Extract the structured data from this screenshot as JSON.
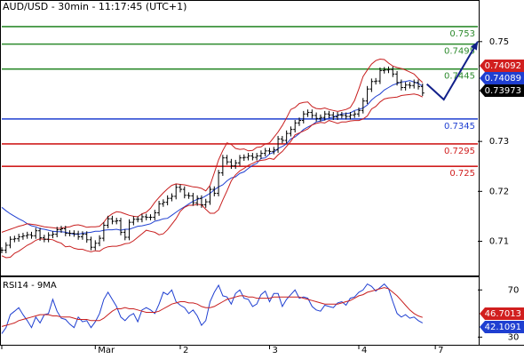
{
  "chart_data": {
    "type": "line",
    "title": "AUD/USD - 30min - 11:17:45 (UTC+1)",
    "price_panel": {
      "ylim": [
        0.7035,
        0.7578
      ],
      "y_ticks": [
        {
          "value": 0.75,
          "label": "0.75"
        },
        {
          "value": 0.73,
          "label": "0.73"
        },
        {
          "value": 0.72,
          "label": "0.72"
        },
        {
          "value": 0.71,
          "label": "0.71"
        }
      ],
      "levels": [
        {
          "value": 0.753,
          "label": "0.753",
          "color": "#2e8b2e"
        },
        {
          "value": 0.7495,
          "label": "0.7495",
          "color": "#2e8b2e"
        },
        {
          "value": 0.7445,
          "label": "0.7445",
          "color": "#2e8b2e"
        },
        {
          "value": 0.7345,
          "label": "0.7345",
          "color": "#1f3fd1"
        },
        {
          "value": 0.7295,
          "label": "0.7295",
          "color": "#d11f1f"
        },
        {
          "value": 0.725,
          "label": "0.725",
          "color": "#d11f1f"
        }
      ],
      "price_tags": [
        {
          "value": 0.74092,
          "label": "0.74092",
          "color": "#d11f1f"
        },
        {
          "value": 0.74089,
          "label": "0.74089",
          "color": "#1f3fd1"
        },
        {
          "value": 0.73973,
          "label": "0.73973",
          "color": "#000000"
        }
      ],
      "projection": [
        {
          "x": 100,
          "y": 0.7415
        },
        {
          "x": 104,
          "y": 0.7384
        },
        {
          "x": 112,
          "y": 0.75
        }
      ],
      "series": [
        {
          "role": "price",
          "color": "#000000",
          "y": [
            0.7082,
            0.7092,
            0.7104,
            0.7105,
            0.7109,
            0.7111,
            0.7113,
            0.7111,
            0.7121,
            0.7107,
            0.7104,
            0.7112,
            0.7114,
            0.7123,
            0.7125,
            0.7116,
            0.7116,
            0.7115,
            0.7109,
            0.7114,
            0.7103,
            0.7088,
            0.7096,
            0.7106,
            0.7132,
            0.7145,
            0.714,
            0.7141,
            0.7118,
            0.7108,
            0.7138,
            0.7144,
            0.7144,
            0.7149,
            0.7148,
            0.7148,
            0.7157,
            0.7175,
            0.7178,
            0.7186,
            0.719,
            0.7208,
            0.7204,
            0.7192,
            0.7191,
            0.7177,
            0.7186,
            0.7173,
            0.7179,
            0.7204,
            0.7196,
            0.7237,
            0.7267,
            0.7259,
            0.7251,
            0.7257,
            0.7267,
            0.7268,
            0.7271,
            0.7268,
            0.7271,
            0.7276,
            0.7281,
            0.728,
            0.7283,
            0.7305,
            0.7302,
            0.7316,
            0.7324,
            0.7337,
            0.7342,
            0.7355,
            0.7358,
            0.7352,
            0.7346,
            0.7348,
            0.7355,
            0.7353,
            0.7349,
            0.7353,
            0.7352,
            0.735,
            0.7353,
            0.7355,
            0.7362,
            0.7381,
            0.7405,
            0.742,
            0.7421,
            0.7442,
            0.7443,
            0.7444,
            0.7435,
            0.7418,
            0.7408,
            0.7413,
            0.7412,
            0.7418,
            0.741,
            0.7397
          ]
        },
        {
          "role": "moving-average",
          "color": "#1f3fd1",
          "y": [
            0.7168,
            0.7161,
            0.7155,
            0.715,
            0.7145,
            0.7141,
            0.7135,
            0.7131,
            0.7129,
            0.7125,
            0.7124,
            0.7122,
            0.712,
            0.7119,
            0.7119,
            0.7118,
            0.7116,
            0.7114,
            0.7114,
            0.7116,
            0.7117,
            0.7118,
            0.712,
            0.712,
            0.7122,
            0.7123,
            0.7123,
            0.7124,
            0.7122,
            0.7124,
            0.7124,
            0.7127,
            0.713,
            0.7131,
            0.7133,
            0.7135,
            0.714,
            0.7142,
            0.7145,
            0.7146,
            0.7152,
            0.7158,
            0.7164,
            0.7169,
            0.7175,
            0.718,
            0.7184,
            0.7186,
            0.7191,
            0.7196,
            0.7203,
            0.7209,
            0.7213,
            0.7221,
            0.7227,
            0.7229,
            0.7236,
            0.7239,
            0.7246,
            0.7252,
            0.7256,
            0.7266,
            0.7267,
            0.7275,
            0.7278,
            0.7286,
            0.729,
            0.7295,
            0.7305,
            0.7309,
            0.7316,
            0.7324,
            0.7329,
            0.7333,
            0.7339,
            0.7341,
            0.7343,
            0.7347,
            0.7349,
            0.7352,
            0.7355,
            0.7356,
            0.7357,
            0.7362,
            0.7364,
            0.7367,
            0.7373,
            0.7383,
            0.739,
            0.7395,
            0.7403,
            0.7408,
            0.7413,
            0.7416,
            0.7419,
            0.742,
            0.7422,
            0.7419,
            0.7416,
            0.7411
          ]
        },
        {
          "role": "band-upper",
          "color": "#c81e1e",
          "y": [
            0.7118,
            0.7121,
            0.7124,
            0.7127,
            0.713,
            0.7132,
            0.7135,
            0.7134,
            0.7133,
            0.7131,
            0.7129,
            0.7128,
            0.7127,
            0.7126,
            0.7126,
            0.7128,
            0.7129,
            0.7132,
            0.7133,
            0.7131,
            0.7128,
            0.7129,
            0.7129,
            0.713,
            0.7138,
            0.7149,
            0.7155,
            0.7159,
            0.7158,
            0.7155,
            0.7152,
            0.715,
            0.7149,
            0.7155,
            0.7158,
            0.7166,
            0.7178,
            0.7188,
            0.7197,
            0.7205,
            0.7212,
            0.7215,
            0.7214,
            0.7213,
            0.7211,
            0.7209,
            0.7208,
            0.7206,
            0.7201,
            0.7212,
            0.7237,
            0.7263,
            0.7282,
            0.7297,
            0.7294,
            0.7286,
            0.7284,
            0.7285,
            0.7281,
            0.7282,
            0.7288,
            0.7289,
            0.7295,
            0.7297,
            0.7308,
            0.7319,
            0.7332,
            0.7347,
            0.7364,
            0.7368,
            0.7376,
            0.7378,
            0.7379,
            0.737,
            0.7366,
            0.7365,
            0.7367,
            0.7364,
            0.7362,
            0.736,
            0.7362,
            0.7364,
            0.7368,
            0.7382,
            0.7405,
            0.743,
            0.7443,
            0.7455,
            0.7462,
            0.7465,
            0.7464,
            0.7457,
            0.7451,
            0.7448,
            0.7446,
            0.7443,
            0.7439,
            0.7435,
            0.7426,
            0.7418
          ]
        },
        {
          "role": "band-lower",
          "color": "#c81e1e",
          "y": [
            0.7071,
            0.7067,
            0.7068,
            0.7076,
            0.708,
            0.7086,
            0.7092,
            0.7096,
            0.7102,
            0.7105,
            0.7104,
            0.7104,
            0.7103,
            0.7099,
            0.7096,
            0.7089,
            0.709,
            0.7086,
            0.7084,
            0.7084,
            0.7081,
            0.7079,
            0.7081,
            0.708,
            0.7086,
            0.7089,
            0.709,
            0.709,
            0.7092,
            0.7095,
            0.7096,
            0.7101,
            0.7108,
            0.7115,
            0.7122,
            0.712,
            0.7118,
            0.7113,
            0.7115,
            0.7123,
            0.7134,
            0.7145,
            0.716,
            0.7168,
            0.7172,
            0.7172,
            0.7174,
            0.7173,
            0.7164,
            0.7156,
            0.7156,
            0.7163,
            0.7183,
            0.7201,
            0.7221,
            0.7233,
            0.7241,
            0.7246,
            0.7252,
            0.7256,
            0.726,
            0.7262,
            0.7263,
            0.7266,
            0.7264,
            0.7273,
            0.728,
            0.729,
            0.73,
            0.7313,
            0.7317,
            0.7321,
            0.7325,
            0.7333,
            0.7336,
            0.7338,
            0.7337,
            0.7342,
            0.7339,
            0.7336,
            0.7339,
            0.7339,
            0.7341,
            0.7342,
            0.7342,
            0.7345,
            0.7351,
            0.7365,
            0.737,
            0.7379,
            0.7385,
            0.7387,
            0.7388,
            0.7389,
            0.7392,
            0.7393,
            0.7394,
            0.7395,
            0.7393,
            0.7389
          ]
        }
      ]
    },
    "rsi_panel": {
      "title": "RSI14 - 9MA",
      "ylim": [
        25,
        80
      ],
      "y_ticks": [
        {
          "value": 70,
          "label": "70"
        },
        {
          "value": 30,
          "label": "30"
        }
      ],
      "value_tags": [
        {
          "value": 46.7013,
          "label": "46.7013",
          "color": "#d11f1f"
        },
        {
          "value": 42.1091,
          "label": "42.1091",
          "color": "#1f3fd1"
        }
      ],
      "series": [
        {
          "role": "rsi",
          "color": "#1f3fd1",
          "y": [
            33.0,
            38.0,
            49.0,
            52.0,
            55.0,
            49.0,
            44.0,
            38.0,
            47.0,
            42.0,
            49.0,
            50.0,
            62.0,
            52.0,
            46.0,
            45.0,
            41.0,
            38.0,
            47.0,
            43.0,
            44.0,
            38.0,
            43.0,
            50.0,
            62.0,
            68.0,
            62.0,
            56.0,
            47.0,
            44.0,
            48.0,
            50.0,
            43.0,
            53.0,
            55.0,
            53.0,
            50.0,
            58.0,
            68.0,
            66.0,
            70.0,
            60.0,
            57.0,
            55.0,
            50.0,
            53.0,
            48.0,
            40.0,
            44.0,
            60.0,
            68.0,
            74.0,
            65.0,
            64.0,
            58.0,
            67.0,
            70.0,
            63.0,
            62.0,
            56.0,
            58.0,
            66.0,
            69.0,
            60.0,
            67.0,
            67.0,
            56.0,
            62.0,
            66.0,
            70.0,
            63.0,
            64.0,
            63.0,
            56.0,
            53.0,
            52.0,
            57.0,
            56.0,
            55.0,
            59.0,
            60.0,
            57.0,
            63.0,
            64.0,
            68.0,
            70.0,
            75.0,
            73.0,
            69.0,
            72.0,
            75.0,
            71.0,
            60.0,
            50.0,
            47.0,
            49.0,
            46.0,
            47.0,
            44.0,
            42.0
          ]
        },
        {
          "role": "rsi-ma",
          "color": "#c81e1e",
          "y": [
            39.0,
            40.0,
            41.0,
            42.0,
            44.0,
            45.0,
            46.0,
            47.0,
            48.0,
            49.0,
            49.0,
            49.0,
            48.0,
            48.0,
            47.0,
            47.0,
            47.0,
            46.0,
            45.0,
            45.0,
            45.0,
            44.0,
            44.0,
            44.0,
            46.0,
            49.0,
            52.0,
            54.0,
            54.0,
            55.0,
            54.0,
            54.0,
            53.0,
            52.0,
            51.0,
            51.0,
            51.0,
            52.0,
            54.0,
            56.0,
            58.0,
            59.0,
            60.0,
            60.0,
            59.0,
            59.0,
            58.0,
            56.0,
            55.0,
            55.0,
            56.0,
            58.0,
            60.0,
            62.0,
            63.0,
            64.0,
            65.0,
            65.0,
            64.0,
            64.0,
            63.0,
            63.0,
            63.0,
            63.0,
            64.0,
            64.0,
            64.0,
            64.0,
            64.0,
            64.0,
            64.0,
            63.0,
            62.0,
            61.0,
            60.0,
            59.0,
            58.0,
            58.0,
            58.0,
            58.0,
            59.0,
            60.0,
            61.0,
            63.0,
            65.0,
            66.0,
            68.0,
            69.0,
            70.0,
            71.0,
            72.0,
            71.0,
            68.0,
            65.0,
            61.0,
            57.0,
            53.0,
            50.0,
            48.0,
            46.7
          ]
        }
      ]
    },
    "x_axis": {
      "categories": [
        "",
        "Mar",
        "2",
        "3",
        "4",
        "7"
      ],
      "tick_index": [
        0,
        22,
        42,
        63,
        84,
        102
      ],
      "range": [
        0,
        112
      ]
    },
    "grid": false,
    "legend": "none"
  }
}
